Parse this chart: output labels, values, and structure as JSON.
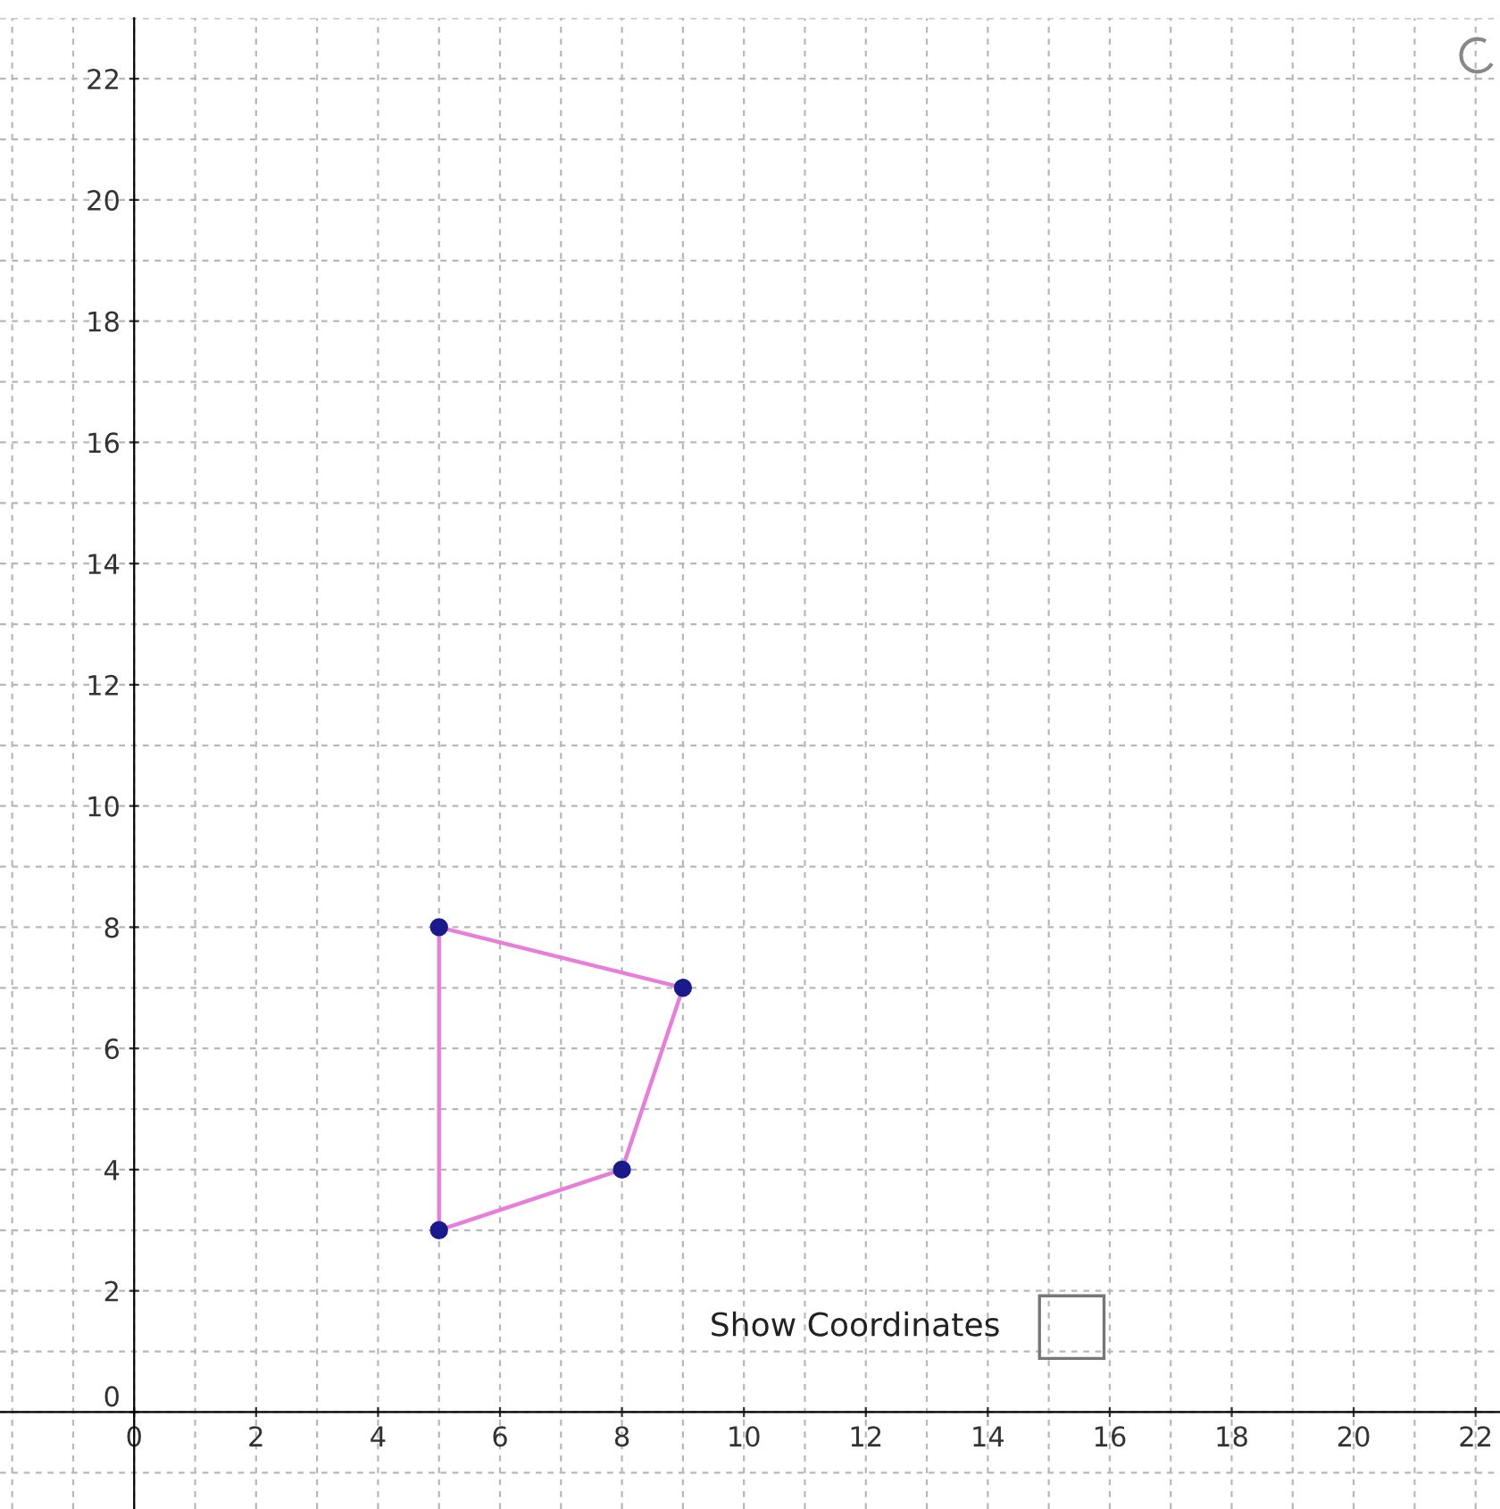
{
  "chart_data": {
    "type": "line",
    "series": [
      {
        "color": "#e77fd9",
        "x": [
          5,
          9
        ],
        "values": [
          8,
          7
        ],
        "marker": "none"
      },
      {
        "color": "#e77fd9",
        "x": [
          8,
          9
        ],
        "values": [
          4,
          7
        ],
        "marker": "none"
      },
      {
        "color": "#e77fd9",
        "x": [
          5,
          8
        ],
        "values": [
          3,
          4
        ],
        "marker": "none"
      },
      {
        "color": "#e77fd9",
        "x": [
          5,
          5
        ],
        "values": [
          3,
          8
        ],
        "marker": "none"
      },
      {
        "type": "scatter",
        "color": "#1a1a8c",
        "x": [
          5,
          9,
          8,
          5
        ],
        "values": [
          8,
          7,
          4,
          3
        ],
        "marker": "circle"
      }
    ],
    "xlim": [
      -2.2,
      22.4
    ],
    "ylim": [
      -1.6,
      23
    ],
    "xticks": [
      0,
      2,
      4,
      6,
      8,
      10,
      12,
      14,
      16,
      18,
      20,
      22
    ],
    "yticks": [
      0,
      2,
      4,
      6,
      8,
      10,
      12,
      14,
      16,
      18,
      20,
      22
    ],
    "grid": true,
    "line_style": "solid",
    "annotations": [
      "Show Coordinates"
    ]
  }
}
